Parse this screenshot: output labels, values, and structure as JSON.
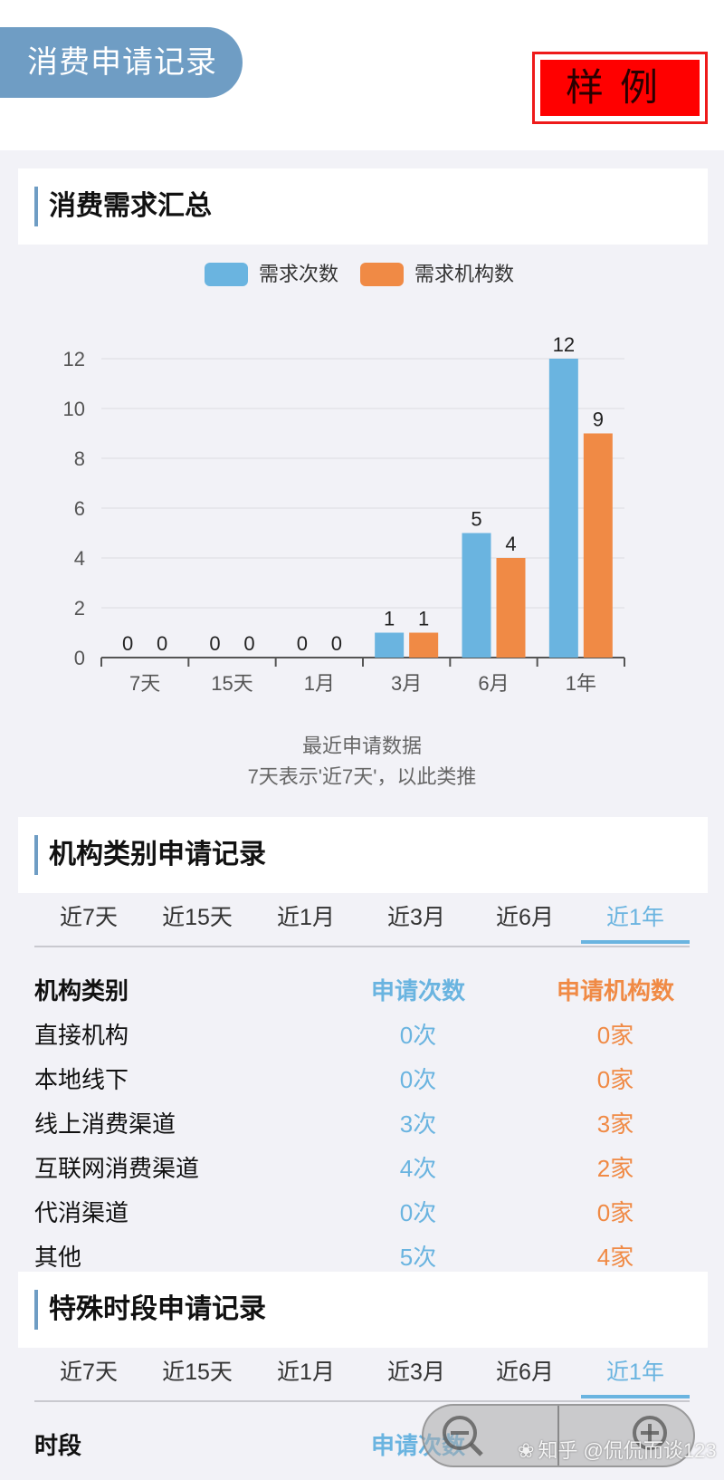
{
  "header": {
    "title": "消费申请记录",
    "sample_stamp": "样例"
  },
  "summary": {
    "title": "消费需求汇总",
    "legend": [
      "需求次数",
      "需求机构数"
    ],
    "caption_line1": "最近申请数据",
    "caption_line2": "7天表示'近7天'，以此类推"
  },
  "chart_data": {
    "type": "bar",
    "title": "",
    "xlabel": "",
    "ylabel": "",
    "categories": [
      "7天",
      "15天",
      "1月",
      "3月",
      "6月",
      "1年"
    ],
    "series": [
      {
        "name": "需求次数",
        "values": [
          0,
          0,
          0,
          1,
          5,
          12
        ],
        "color": "#6ab4e0"
      },
      {
        "name": "需求机构数",
        "values": [
          0,
          0,
          0,
          1,
          4,
          9
        ],
        "color": "#f08a45"
      }
    ],
    "ylim": [
      0,
      12
    ],
    "yticks": [
      0,
      2,
      4,
      6,
      8,
      10,
      12
    ],
    "grid": true,
    "legend_position": "top-center",
    "data_labels": true
  },
  "category_section": {
    "title": "机构类别申请记录",
    "tabs": [
      "近7天",
      "近15天",
      "近1月",
      "近3月",
      "近6月",
      "近1年"
    ],
    "active_tab": "近1年",
    "columns": [
      "机构类别",
      "申请次数",
      "申请机构数"
    ],
    "rows": [
      {
        "name": "直接机构",
        "count": "0次",
        "orgs": "0家"
      },
      {
        "name": "本地线下",
        "count": "0次",
        "orgs": "0家"
      },
      {
        "name": "线上消费渠道",
        "count": "3次",
        "orgs": "3家"
      },
      {
        "name": "互联网消费渠道",
        "count": "4次",
        "orgs": "2家"
      },
      {
        "name": "代消渠道",
        "count": "0次",
        "orgs": "0家"
      },
      {
        "name": "其他",
        "count": "5次",
        "orgs": "4家"
      }
    ]
  },
  "period_section": {
    "title": "特殊时段申请记录",
    "tabs": [
      "近7天",
      "近15天",
      "近1月",
      "近3月",
      "近6月",
      "近1年"
    ],
    "active_tab": "近1年",
    "columns": [
      "时段",
      "申请次数"
    ]
  },
  "overlay": {
    "watermark": "知乎 @侃侃而谈123",
    "zoom_out_icon": "zoom-out-icon",
    "zoom_in_icon": "zoom-in-icon"
  },
  "colors": {
    "accent_blue": "#6ab4e0",
    "accent_orange": "#f08a45",
    "header_pill": "#6f9dc4",
    "stamp_red": "#ff0000"
  }
}
